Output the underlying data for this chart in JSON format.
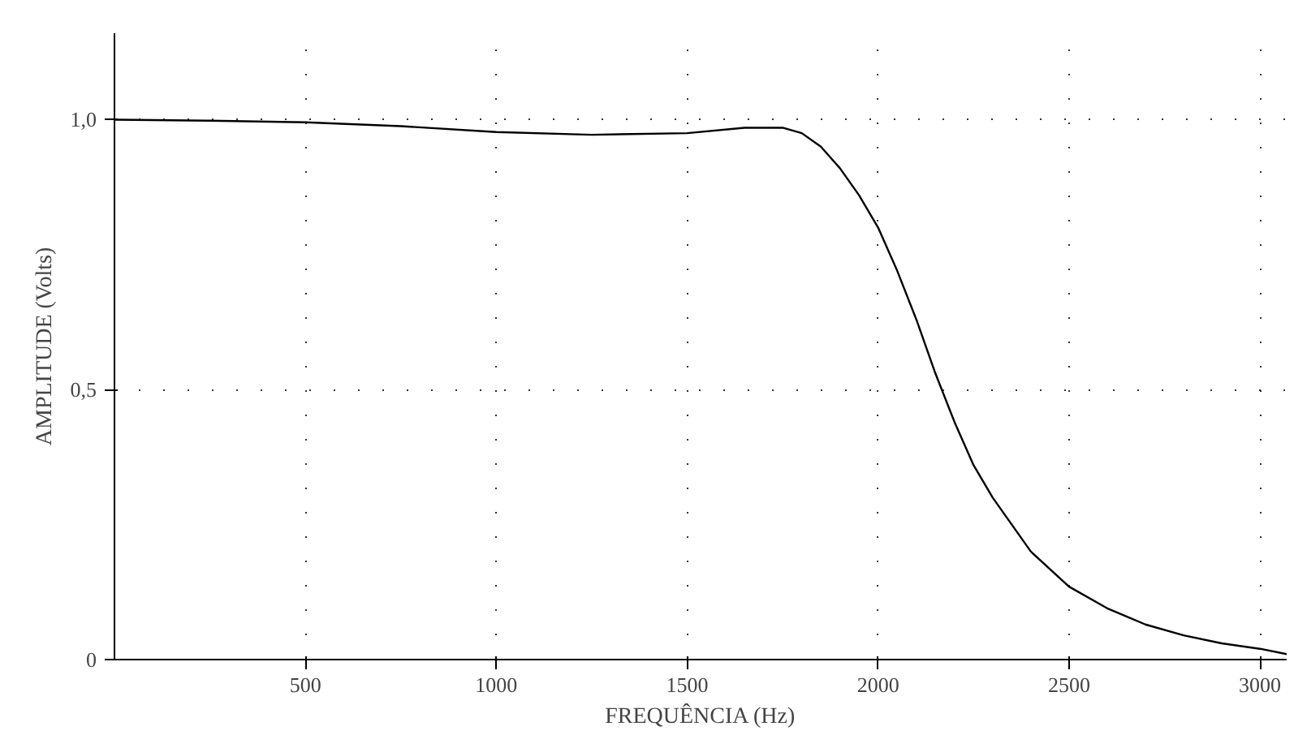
{
  "chart_data": {
    "type": "line",
    "xlabel": "FREQUÊNCIA (Hz)",
    "ylabel": "AMPLITUDE (Volts)",
    "x": [
      0,
      250,
      500,
      750,
      1000,
      1250,
      1500,
      1650,
      1750,
      1800,
      1850,
      1900,
      1950,
      2000,
      2050,
      2100,
      2150,
      2200,
      2250,
      2300,
      2400,
      2500,
      2600,
      2700,
      2800,
      2900,
      3000,
      3070
    ],
    "series": [
      {
        "color": "#000000",
        "values": [
          1.0,
          0.998,
          0.995,
          0.988,
          0.977,
          0.972,
          0.975,
          0.985,
          0.985,
          0.975,
          0.95,
          0.91,
          0.86,
          0.8,
          0.72,
          0.63,
          0.53,
          0.44,
          0.36,
          0.3,
          0.2,
          0.135,
          0.095,
          0.065,
          0.045,
          0.03,
          0.02,
          0.01
        ]
      }
    ],
    "xlim": [
      0,
      3070
    ],
    "ylim": [
      0,
      1.16
    ],
    "xticks": [
      500,
      1000,
      1500,
      2000,
      2500,
      3000
    ],
    "yticks": [
      0,
      {
        "value": 0.5,
        "label": "0,5"
      },
      {
        "value": 1.0,
        "label": "1,0"
      }
    ],
    "grid": true,
    "line_style": "solid",
    "marker": "none"
  }
}
